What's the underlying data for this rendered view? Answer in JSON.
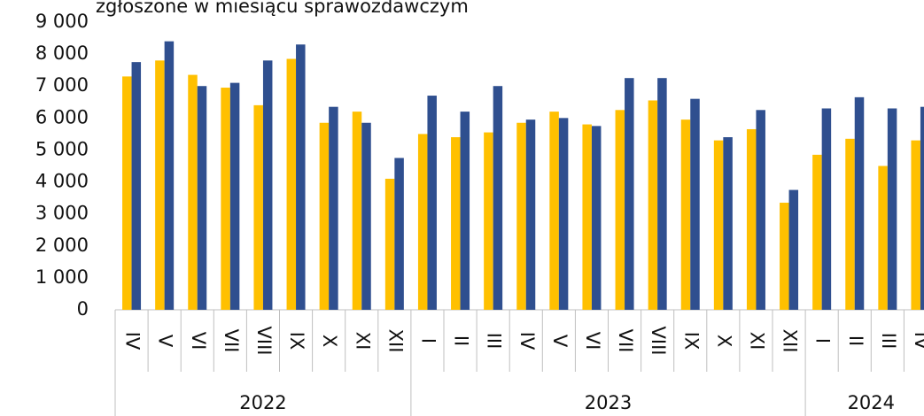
{
  "chart_data": {
    "type": "bar",
    "title": "zgłoszone w miesiącu sprawozdawczym",
    "groups": [
      {
        "label": "2022",
        "categories": [
          "IV",
          "V",
          "VI",
          "VII",
          "VIII",
          "IX",
          "X",
          "XI",
          "XII"
        ]
      },
      {
        "label": "2023",
        "categories": [
          "I",
          "II",
          "III",
          "IV",
          "V",
          "VI",
          "VII",
          "VIII",
          "IX",
          "X",
          "XI",
          "XII"
        ]
      },
      {
        "label": "2024",
        "categories": [
          "I",
          "II",
          "III",
          "IV"
        ]
      }
    ],
    "series": [
      {
        "color": "#ffc000",
        "values": [
          7300,
          7800,
          7350,
          6950,
          6400,
          7850,
          5850,
          6200,
          4100,
          5500,
          5400,
          5550,
          5850,
          6200,
          5800,
          6250,
          6550,
          5950,
          5300,
          5650,
          3350,
          4850,
          5350,
          4500,
          5300
        ]
      },
      {
        "color": "#2f4f8f",
        "values": [
          7750,
          8400,
          7000,
          7100,
          7800,
          8300,
          6350,
          5850,
          4750,
          6700,
          6200,
          7000,
          5950,
          6000,
          5750,
          7250,
          7250,
          6600,
          5400,
          6250,
          3750,
          6300,
          6650,
          6300,
          6350
        ]
      }
    ],
    "ylim": [
      0,
      9000
    ],
    "yticks": [
      0,
      {
        "value": 1000,
        "label": "1 000"
      },
      {
        "value": 2000,
        "label": "2 000"
      },
      {
        "value": 3000,
        "label": "3 000"
      },
      {
        "value": 4000,
        "label": "4 000"
      },
      {
        "value": 5000,
        "label": "5 000"
      },
      {
        "value": 6000,
        "label": "6 000"
      },
      {
        "value": 7000,
        "label": "7 000"
      },
      {
        "value": 8000,
        "label": "8 000"
      },
      {
        "value": 9000,
        "label": "9 000"
      }
    ],
    "grid": false
  }
}
